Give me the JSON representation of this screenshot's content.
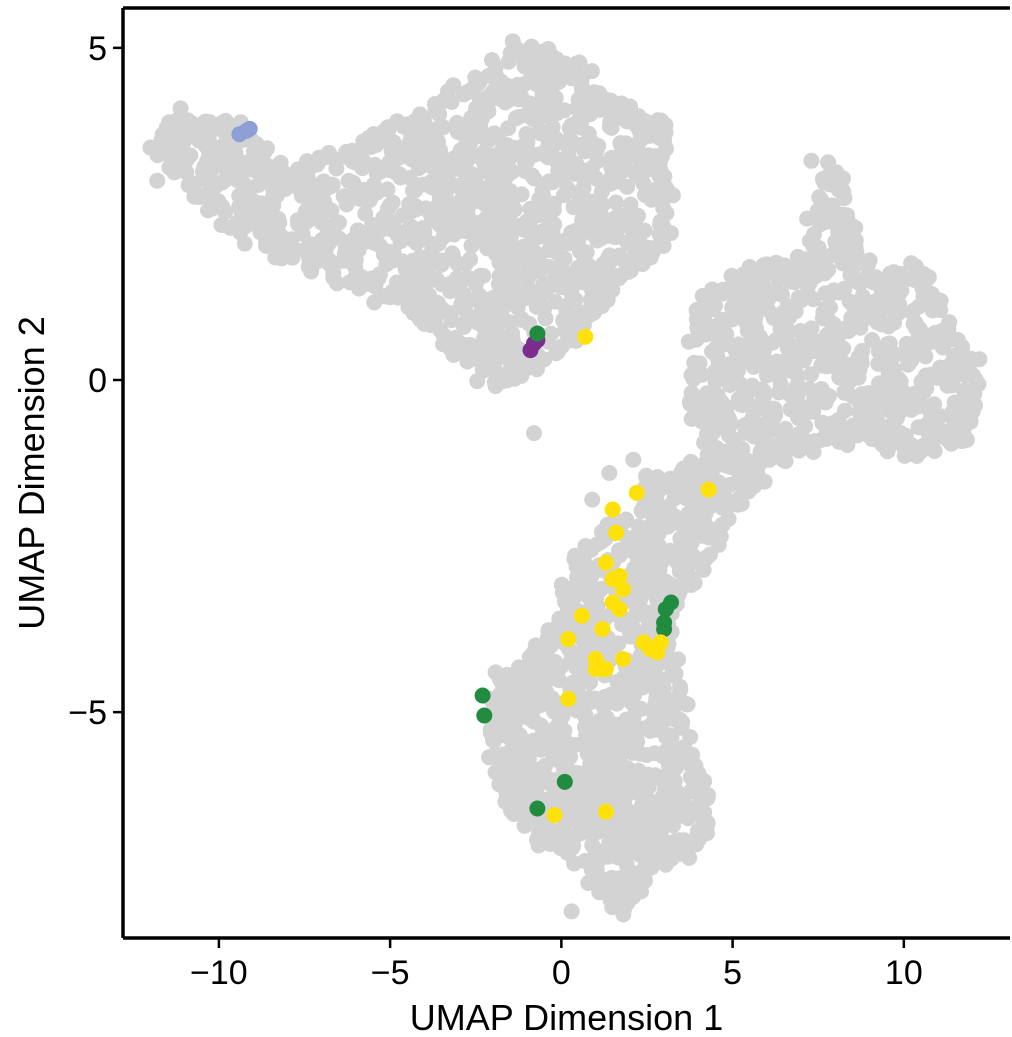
{
  "chart_data": {
    "type": "scatter",
    "title": "",
    "xlabel": "UMAP Dimension 1",
    "ylabel": "UMAP Dimension 2",
    "xlim": [
      -12.8,
      13.1
    ],
    "ylim": [
      -8.4,
      5.6
    ],
    "x_ticks": [
      -10,
      -5,
      0,
      5,
      10
    ],
    "y_ticks": [
      -5,
      0,
      5
    ],
    "x_tick_labels": [
      "−10",
      "−5",
      "0",
      "5",
      "10"
    ],
    "y_tick_labels": [
      "−5",
      "0",
      "5"
    ],
    "grid": false,
    "legend": "none",
    "background_color": "#d3d3d3",
    "background_regions": [
      {
        "region": "upper-left-lobe",
        "cx": -4.6,
        "cy": 2.8,
        "sx": 3.2,
        "sy": 0.75,
        "n": 1050,
        "outline": [
          [
            -11.6,
            3.7
          ],
          [
            -11.2,
            3.9
          ],
          [
            -9.5,
            3.8
          ],
          [
            -8.0,
            3.1
          ],
          [
            -6.0,
            3.5
          ],
          [
            -4.5,
            3.8
          ],
          [
            -2.8,
            4.4
          ],
          [
            -1.5,
            4.9
          ],
          [
            -0.6,
            5.0
          ],
          [
            0.5,
            4.6
          ],
          [
            1.8,
            4.0
          ],
          [
            3.1,
            3.8
          ],
          [
            3.0,
            2.0
          ],
          [
            1.6,
            1.5
          ],
          [
            0.7,
            0.9
          ],
          [
            -0.6,
            0.3
          ],
          [
            -1.8,
            0.0
          ],
          [
            -3.0,
            0.4
          ],
          [
            -4.6,
            1.2
          ],
          [
            -6.5,
            1.6
          ],
          [
            -8.2,
            1.9
          ],
          [
            -10.2,
            2.6
          ],
          [
            -11.6,
            3.4
          ]
        ]
      },
      {
        "region": "right-lobe",
        "cx": 8.2,
        "cy": 0.2,
        "sx": 1.5,
        "sy": 0.85,
        "n": 560,
        "outline": [
          [
            4.0,
            1.2
          ],
          [
            5.4,
            1.6
          ],
          [
            7.2,
            1.8
          ],
          [
            7.8,
            3.2
          ],
          [
            8.2,
            3.0
          ],
          [
            8.6,
            1.6
          ],
          [
            10.4,
            1.6
          ],
          [
            11.0,
            1.1
          ],
          [
            12.2,
            0.1
          ],
          [
            11.8,
            -0.9
          ],
          [
            10.1,
            -1.1
          ],
          [
            8.6,
            -0.8
          ],
          [
            7.2,
            -1.0
          ],
          [
            5.6,
            -1.2
          ],
          [
            4.4,
            -1.1
          ],
          [
            3.7,
            -0.3
          ]
        ]
      },
      {
        "region": "bridge-arm",
        "cx": 3.4,
        "cy": -2.0,
        "sx": 0.55,
        "sy": 0.9,
        "n": 140,
        "outline": [
          [
            2.4,
            -1.6
          ],
          [
            3.8,
            -1.3
          ],
          [
            5.2,
            -1.2
          ],
          [
            5.8,
            -1.5
          ],
          [
            4.8,
            -2.0
          ],
          [
            3.8,
            -3.0
          ],
          [
            3.2,
            -3.4
          ],
          [
            2.4,
            -2.7
          ]
        ]
      },
      {
        "region": "lower-lobe",
        "cx": 1.2,
        "cy": -5.4,
        "sx": 1.0,
        "sy": 1.1,
        "n": 720,
        "outline": [
          [
            0.4,
            -2.7
          ],
          [
            1.6,
            -2.1
          ],
          [
            2.9,
            -2.6
          ],
          [
            3.0,
            -3.6
          ],
          [
            3.3,
            -4.3
          ],
          [
            3.8,
            -5.8
          ],
          [
            4.2,
            -6.3
          ],
          [
            4.1,
            -7.0
          ],
          [
            2.8,
            -7.2
          ],
          [
            2.1,
            -7.7
          ],
          [
            1.7,
            -8.0
          ],
          [
            0.7,
            -7.3
          ],
          [
            -0.8,
            -6.8
          ],
          [
            -1.7,
            -6.2
          ],
          [
            -2.0,
            -5.3
          ],
          [
            -1.8,
            -4.5
          ],
          [
            -1.2,
            -4.4
          ],
          [
            -0.2,
            -3.8
          ]
        ]
      }
    ],
    "background_extra_points": [
      [
        -0.8,
        -0.8
      ],
      [
        2.1,
        -1.2
      ],
      [
        1.4,
        -1.4
      ],
      [
        0.9,
        -1.8
      ],
      [
        4.2,
        -1.5
      ],
      [
        7.3,
        3.3
      ],
      [
        8.6,
        2.1
      ],
      [
        9.0,
        1.8
      ],
      [
        9.6,
        1.6
      ],
      [
        4.7,
        1.3
      ],
      [
        -12.0,
        3.5
      ],
      [
        -11.5,
        3.7
      ],
      [
        -11.8,
        3.0
      ],
      [
        -10.0,
        3.5
      ],
      [
        -9.8,
        3.9
      ],
      [
        0.9,
        -7.0
      ],
      [
        2.8,
        -7.1
      ],
      [
        3.7,
        -6.6
      ],
      [
        0.3,
        -8.0
      ]
    ],
    "series": [
      {
        "name": "",
        "color": "#8e9fd6",
        "points": [
          [
            -9.4,
            3.7
          ],
          [
            -9.2,
            3.75
          ],
          [
            -9.1,
            3.78
          ]
        ]
      },
      {
        "name": "",
        "color": "#7b2c8f",
        "points": [
          [
            -0.9,
            0.45
          ],
          [
            -0.8,
            0.55
          ],
          [
            -0.7,
            0.6
          ]
        ]
      },
      {
        "name": "",
        "color": "#218c3f",
        "points": [
          [
            -0.7,
            0.7
          ],
          [
            3.2,
            -3.35
          ],
          [
            3.05,
            -3.45
          ],
          [
            3.0,
            -3.65
          ],
          [
            3.0,
            -3.75
          ],
          [
            -2.3,
            -4.75
          ],
          [
            -2.25,
            -5.05
          ],
          [
            0.1,
            -6.05
          ],
          [
            -0.7,
            -6.45
          ]
        ]
      },
      {
        "name": "",
        "color": "#ffe10a",
        "points": [
          [
            0.7,
            0.65
          ],
          [
            2.2,
            -1.7
          ],
          [
            4.3,
            -1.65
          ],
          [
            1.5,
            -1.95
          ],
          [
            1.6,
            -2.3
          ],
          [
            1.3,
            -2.75
          ],
          [
            1.7,
            -2.95
          ],
          [
            1.5,
            -3.0
          ],
          [
            1.8,
            -3.15
          ],
          [
            1.5,
            -3.35
          ],
          [
            1.7,
            -3.45
          ],
          [
            0.6,
            -3.55
          ],
          [
            1.2,
            -3.75
          ],
          [
            0.2,
            -3.9
          ],
          [
            2.4,
            -3.95
          ],
          [
            2.9,
            -3.95
          ],
          [
            2.6,
            -4.05
          ],
          [
            2.8,
            -4.1
          ],
          [
            1.0,
            -4.2
          ],
          [
            1.8,
            -4.2
          ],
          [
            1.0,
            -4.35
          ],
          [
            1.2,
            -4.35
          ],
          [
            1.3,
            -4.35
          ],
          [
            0.2,
            -4.8
          ],
          [
            -0.2,
            -6.55
          ],
          [
            1.3,
            -6.5
          ]
        ]
      }
    ]
  }
}
